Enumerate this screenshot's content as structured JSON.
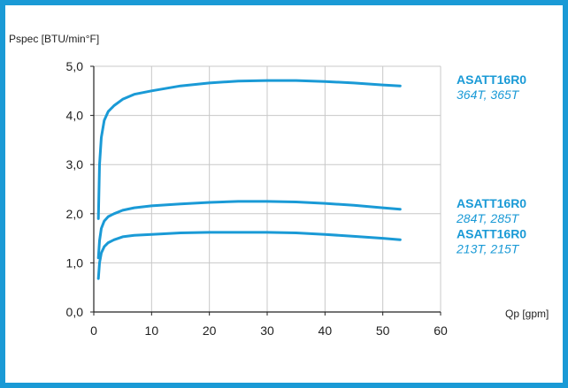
{
  "chart_data": {
    "type": "line",
    "title": "",
    "ylabel": "Pspec [BTU/min°F]",
    "xlabel": "Qp [gpm]",
    "xlim": [
      0,
      60
    ],
    "ylim": [
      0,
      5
    ],
    "x_ticks": [
      "0",
      "10",
      "20",
      "30",
      "40",
      "50",
      "60"
    ],
    "y_ticks": [
      "0,0",
      "1,0",
      "2,0",
      "3,0",
      "4,0",
      "5,0"
    ],
    "grid": true,
    "line_color": "#1a9ad6",
    "series": [
      {
        "name": "ASATT16R0",
        "subtitle": "364T, 365T",
        "x": [
          0.8,
          1.0,
          1.3,
          1.8,
          2.5,
          3.5,
          5,
          7,
          10,
          15,
          20,
          25,
          30,
          35,
          40,
          45,
          50,
          53
        ],
        "y": [
          1.9,
          3.0,
          3.55,
          3.9,
          4.08,
          4.2,
          4.33,
          4.43,
          4.5,
          4.6,
          4.66,
          4.7,
          4.71,
          4.71,
          4.69,
          4.66,
          4.62,
          4.6
        ]
      },
      {
        "name": "ASATT16R0",
        "subtitle": "284T, 285T",
        "x": [
          0.8,
          1.0,
          1.3,
          1.8,
          2.5,
          3.5,
          5,
          7,
          10,
          15,
          20,
          25,
          30,
          35,
          40,
          45,
          50,
          53
        ],
        "y": [
          1.1,
          1.45,
          1.7,
          1.85,
          1.94,
          2.0,
          2.07,
          2.12,
          2.16,
          2.2,
          2.23,
          2.25,
          2.25,
          2.24,
          2.21,
          2.17,
          2.12,
          2.09
        ]
      },
      {
        "name": "ASATT16R0",
        "subtitle": "213T, 215T",
        "x": [
          0.8,
          1.0,
          1.3,
          1.8,
          2.5,
          3.5,
          5,
          7,
          10,
          15,
          20,
          25,
          30,
          35,
          40,
          45,
          50,
          53
        ],
        "y": [
          0.68,
          1.0,
          1.2,
          1.33,
          1.41,
          1.47,
          1.53,
          1.56,
          1.58,
          1.61,
          1.62,
          1.62,
          1.62,
          1.61,
          1.58,
          1.54,
          1.5,
          1.47
        ]
      }
    ]
  }
}
